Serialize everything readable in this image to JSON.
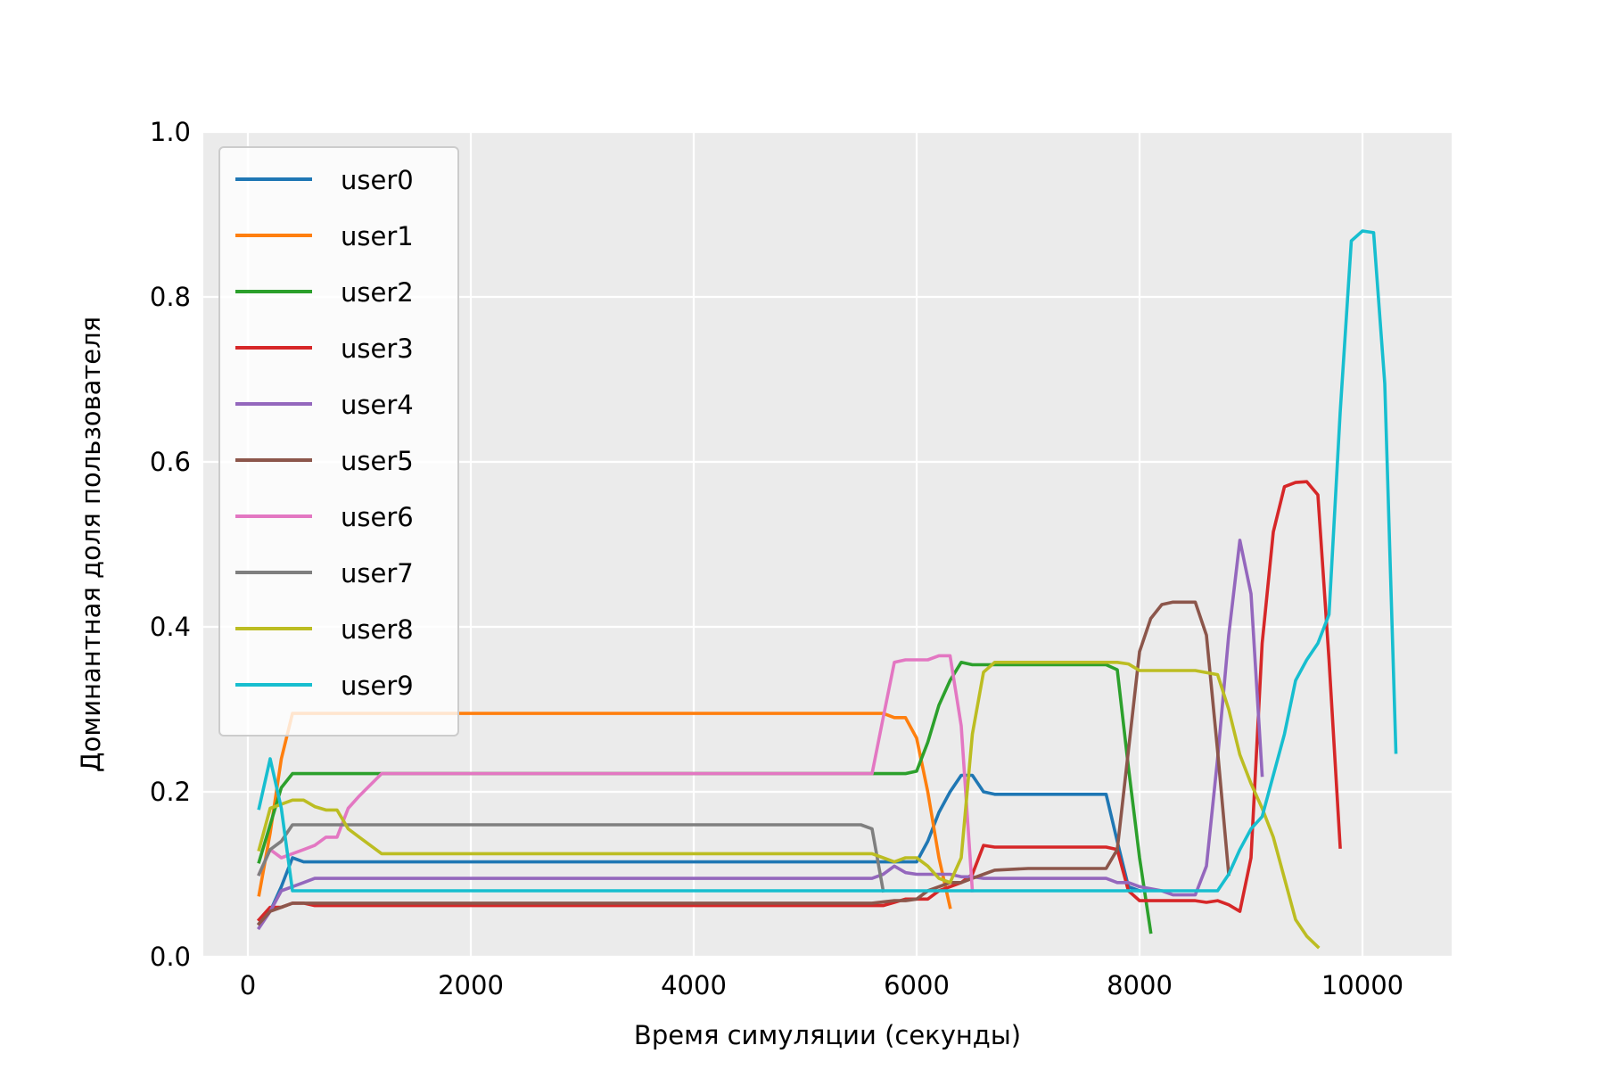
{
  "chart_data": {
    "type": "line",
    "title": "",
    "xlabel": "Время симуляции (секунды)",
    "ylabel": "Доминантная доля пользователя",
    "xlim": [
      -400,
      10800
    ],
    "ylim": [
      0,
      1.0
    ],
    "xticks": [
      0,
      2000,
      4000,
      6000,
      8000,
      10000
    ],
    "xtick_labels": [
      "0",
      "2000",
      "4000",
      "6000",
      "8000",
      "10000"
    ],
    "yticks": [
      0.0,
      0.2,
      0.4,
      0.6,
      0.8,
      1.0
    ],
    "ytick_labels": [
      "0.0",
      "0.2",
      "0.4",
      "0.6",
      "0.8",
      "1.0"
    ],
    "grid": true,
    "background": "#ebebeb",
    "legend_position": "upper-left",
    "series": [
      {
        "name": "user0",
        "color": "#1f77b4",
        "x": [
          100,
          200,
          300,
          400,
          500,
          600,
          800,
          1000,
          2000,
          4000,
          5600,
          5800,
          6000,
          6100,
          6200,
          6300,
          6400,
          6500,
          6600,
          6700,
          7000,
          7500,
          7700,
          7800,
          7900,
          8000
        ],
        "y": [
          0.04,
          0.055,
          0.085,
          0.12,
          0.115,
          0.115,
          0.115,
          0.115,
          0.115,
          0.115,
          0.115,
          0.115,
          0.115,
          0.14,
          0.175,
          0.2,
          0.22,
          0.22,
          0.2,
          0.197,
          0.197,
          0.197,
          0.197,
          0.14,
          0.085,
          0.08
        ]
      },
      {
        "name": "user1",
        "color": "#ff7f0e",
        "x": [
          100,
          200,
          300,
          400,
          500,
          1000,
          2000,
          4000,
          5600,
          5700,
          5800,
          5900,
          6000,
          6100,
          6200,
          6300
        ],
        "y": [
          0.075,
          0.15,
          0.24,
          0.295,
          0.295,
          0.295,
          0.295,
          0.295,
          0.295,
          0.295,
          0.29,
          0.29,
          0.265,
          0.2,
          0.12,
          0.06
        ]
      },
      {
        "name": "user2",
        "color": "#2ca02c",
        "x": [
          100,
          200,
          300,
          400,
          500,
          1000,
          2000,
          4000,
          5600,
          5900,
          6000,
          6100,
          6200,
          6300,
          6400,
          6500,
          7000,
          7700,
          7800,
          7900,
          8000,
          8100
        ],
        "y": [
          0.115,
          0.16,
          0.205,
          0.222,
          0.222,
          0.222,
          0.222,
          0.222,
          0.222,
          0.222,
          0.225,
          0.26,
          0.305,
          0.335,
          0.357,
          0.354,
          0.354,
          0.354,
          0.348,
          0.23,
          0.12,
          0.03
        ]
      },
      {
        "name": "user3",
        "color": "#d62728",
        "x": [
          100,
          200,
          300,
          400,
          500,
          600,
          1000,
          2000,
          4000,
          5700,
          5800,
          5900,
          6000,
          6100,
          6200,
          6300,
          6400,
          6500,
          6600,
          6700,
          7000,
          7600,
          7700,
          7800,
          7900,
          8000,
          8500,
          8600,
          8700,
          8800,
          8900,
          9000,
          9100,
          9200,
          9300,
          9400,
          9500,
          9600,
          9700,
          9800
        ],
        "y": [
          0.045,
          0.06,
          0.06,
          0.065,
          0.065,
          0.062,
          0.062,
          0.062,
          0.062,
          0.062,
          0.066,
          0.07,
          0.07,
          0.07,
          0.08,
          0.085,
          0.09,
          0.1,
          0.135,
          0.133,
          0.133,
          0.133,
          0.133,
          0.13,
          0.08,
          0.068,
          0.068,
          0.066,
          0.068,
          0.063,
          0.055,
          0.12,
          0.38,
          0.515,
          0.57,
          0.575,
          0.576,
          0.56,
          0.36,
          0.133
        ]
      },
      {
        "name": "user4",
        "color": "#9467bd",
        "x": [
          100,
          200,
          300,
          400,
          500,
          600,
          1000,
          2000,
          4000,
          5600,
          5700,
          5800,
          5900,
          6000,
          6100,
          6300,
          6400,
          6500,
          6600,
          7000,
          7700,
          7800,
          7900,
          8000,
          8200,
          8300,
          8400,
          8500,
          8600,
          8700,
          8800,
          8900,
          9000,
          9100
        ],
        "y": [
          0.035,
          0.055,
          0.08,
          0.085,
          0.09,
          0.095,
          0.095,
          0.095,
          0.095,
          0.095,
          0.1,
          0.11,
          0.102,
          0.1,
          0.1,
          0.1,
          0.097,
          0.097,
          0.095,
          0.095,
          0.095,
          0.09,
          0.09,
          0.085,
          0.08,
          0.075,
          0.075,
          0.075,
          0.11,
          0.24,
          0.39,
          0.505,
          0.44,
          0.22
        ]
      },
      {
        "name": "user5",
        "color": "#8c564b",
        "x": [
          100,
          200,
          300,
          400,
          500,
          600,
          1000,
          2000,
          4000,
          5600,
          5800,
          5900,
          6000,
          6100,
          6200,
          6300,
          6400,
          6500,
          6600,
          6700,
          7000,
          7500,
          7700,
          7800,
          7900,
          8000,
          8100,
          8200,
          8300,
          8400,
          8500,
          8600,
          8700,
          8800
        ],
        "y": [
          0.04,
          0.055,
          0.06,
          0.065,
          0.065,
          0.065,
          0.065,
          0.065,
          0.065,
          0.065,
          0.068,
          0.068,
          0.07,
          0.08,
          0.085,
          0.09,
          0.09,
          0.095,
          0.1,
          0.105,
          0.107,
          0.107,
          0.107,
          0.13,
          0.25,
          0.37,
          0.41,
          0.427,
          0.43,
          0.43,
          0.43,
          0.39,
          0.25,
          0.1
        ]
      },
      {
        "name": "user6",
        "color": "#e377c2",
        "x": [
          100,
          200,
          300,
          400,
          500,
          600,
          700,
          800,
          900,
          1000,
          1200,
          2000,
          4000,
          5600,
          5700,
          5800,
          5900,
          6000,
          6100,
          6200,
          6300,
          6400,
          6500
        ],
        "y": [
          0.1,
          0.13,
          0.12,
          0.125,
          0.13,
          0.135,
          0.145,
          0.145,
          0.18,
          0.195,
          0.222,
          0.222,
          0.222,
          0.222,
          0.29,
          0.357,
          0.36,
          0.36,
          0.36,
          0.365,
          0.365,
          0.28,
          0.08
        ]
      },
      {
        "name": "user7",
        "color": "#7f7f7f",
        "x": [
          100,
          200,
          300,
          400,
          500,
          1000,
          2000,
          4000,
          5500,
          5600,
          5700
        ],
        "y": [
          0.1,
          0.13,
          0.14,
          0.16,
          0.16,
          0.16,
          0.16,
          0.16,
          0.16,
          0.155,
          0.08
        ]
      },
      {
        "name": "user8",
        "color": "#bcbd22",
        "x": [
          100,
          200,
          300,
          400,
          500,
          600,
          700,
          800,
          900,
          1000,
          1200,
          2000,
          4000,
          5600,
          5700,
          5800,
          5900,
          6000,
          6100,
          6200,
          6300,
          6400,
          6500,
          6600,
          6700,
          7000,
          7700,
          7800,
          7900,
          8000,
          8500,
          8700,
          8800,
          8900,
          9000,
          9100,
          9200,
          9300,
          9400,
          9500,
          9600
        ],
        "y": [
          0.13,
          0.18,
          0.185,
          0.19,
          0.19,
          0.182,
          0.178,
          0.178,
          0.155,
          0.145,
          0.125,
          0.125,
          0.125,
          0.125,
          0.12,
          0.115,
          0.12,
          0.12,
          0.11,
          0.095,
          0.09,
          0.12,
          0.27,
          0.345,
          0.357,
          0.357,
          0.357,
          0.357,
          0.355,
          0.347,
          0.347,
          0.342,
          0.3,
          0.245,
          0.21,
          0.18,
          0.145,
          0.095,
          0.045,
          0.025,
          0.012
        ]
      },
      {
        "name": "user9",
        "color": "#17becf",
        "x": [
          100,
          200,
          300,
          400,
          500,
          1000,
          2000,
          4000,
          6000,
          7000,
          8000,
          8200,
          8500,
          8700,
          8800,
          8900,
          9000,
          9100,
          9200,
          9300,
          9400,
          9500,
          9600,
          9700,
          9800,
          9900,
          10000,
          10100,
          10200,
          10300
        ],
        "y": [
          0.18,
          0.24,
          0.18,
          0.08,
          0.08,
          0.08,
          0.08,
          0.08,
          0.08,
          0.08,
          0.08,
          0.08,
          0.08,
          0.08,
          0.1,
          0.13,
          0.155,
          0.17,
          0.22,
          0.27,
          0.335,
          0.36,
          0.38,
          0.415,
          0.66,
          0.868,
          0.88,
          0.878,
          0.695,
          0.248
        ]
      }
    ]
  }
}
